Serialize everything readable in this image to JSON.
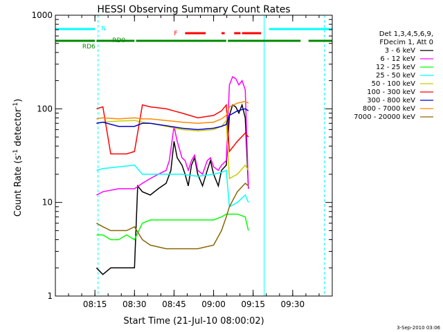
{
  "chart_data": {
    "type": "line",
    "title": "HESSI Observing Summary Count Rates",
    "xlabel": "Start Time (21-Jul-10 08:00:02)",
    "ylabel": "Count Rate (s⁻¹ detector⁻¹)",
    "ylabel_parts": {
      "main": "Count Rate (s",
      "sup1": "-1",
      "mid": " detector",
      "sup2": "-1",
      "end": ")"
    },
    "y_scale": "log",
    "ylim": [
      1,
      1000
    ],
    "y_ticks": [
      1,
      10,
      100,
      1000
    ],
    "y_tick_labels": [
      "1",
      "10",
      "100",
      "1000"
    ],
    "xlim": [
      8.0,
      9.75
    ],
    "x_ticks": [
      8.25,
      8.5,
      8.75,
      9.0,
      9.25,
      9.5
    ],
    "x_tick_labels": [
      "08:15",
      "08:30",
      "08:45",
      "09:00",
      "09:15",
      "09:30"
    ],
    "legend_header": [
      "Det 1,3,4,5,6,9,",
      "FDecim 1, Att 0"
    ],
    "legend_position": "right",
    "series": [
      {
        "name": "3 - 6 keV",
        "color": "#000000",
        "x": [
          8.26,
          8.3,
          8.35,
          8.4,
          8.45,
          8.5,
          8.52,
          8.55,
          8.6,
          8.65,
          8.7,
          8.73,
          8.75,
          8.77,
          8.8,
          8.82,
          8.84,
          8.86,
          8.88,
          8.9,
          8.93,
          8.96,
          8.98,
          9.0,
          9.03,
          9.05,
          9.08,
          9.1,
          9.12,
          9.14,
          9.16,
          9.18,
          9.2,
          9.22
        ],
        "y": [
          2,
          1.7,
          2,
          2,
          2,
          2,
          15,
          13,
          12,
          14,
          16,
          22,
          45,
          30,
          25,
          20,
          15,
          25,
          30,
          20,
          15,
          22,
          28,
          20,
          15,
          22,
          25,
          85,
          110,
          105,
          90,
          110,
          80,
          14
        ]
      },
      {
        "name": "6 - 12 keV",
        "color": "#ff00ff",
        "x": [
          8.26,
          8.3,
          8.4,
          8.5,
          8.55,
          8.6,
          8.65,
          8.7,
          8.72,
          8.75,
          8.77,
          8.8,
          8.82,
          8.84,
          8.86,
          8.88,
          8.9,
          8.93,
          8.96,
          8.98,
          9.0,
          9.03,
          9.05,
          9.08,
          9.1,
          9.12,
          9.14,
          9.16,
          9.18,
          9.2,
          9.22
        ],
        "y": [
          12,
          13,
          14,
          14,
          16,
          18,
          20,
          22,
          28,
          65,
          45,
          30,
          28,
          22,
          28,
          32,
          22,
          20,
          28,
          30,
          24,
          22,
          25,
          28,
          180,
          220,
          210,
          180,
          200,
          160,
          14
        ]
      },
      {
        "name": "12 - 25 keV",
        "color": "#00ff00",
        "x": [
          8.26,
          8.3,
          8.35,
          8.4,
          8.45,
          8.5,
          8.55,
          8.6,
          8.7,
          8.8,
          8.9,
          9.0,
          9.05,
          9.08,
          9.1,
          9.15,
          9.2,
          9.22
        ],
        "y": [
          4.5,
          4.5,
          4,
          4,
          4.5,
          4,
          6,
          6.5,
          6.5,
          6.5,
          6.5,
          6.5,
          7,
          7.5,
          7.5,
          7.5,
          7,
          5
        ]
      },
      {
        "name": "25 - 50 keV",
        "color": "#00ffff",
        "x": [
          8.26,
          8.3,
          8.4,
          8.5,
          8.55,
          8.6,
          8.7,
          8.8,
          8.9,
          9.0,
          9.05,
          9.08,
          9.1,
          9.15,
          9.2,
          9.22
        ],
        "y": [
          22,
          23,
          24,
          25,
          20,
          20,
          20,
          20,
          19,
          20,
          21,
          22,
          9,
          10,
          12,
          10
        ]
      },
      {
        "name": "50 - 100 keV",
        "color": "#cccc00",
        "x": [
          8.26,
          8.3,
          8.4,
          8.5,
          8.55,
          8.6,
          8.7,
          8.8,
          8.9,
          9.0,
          9.05,
          9.08,
          9.1,
          9.15,
          9.2,
          9.22
        ],
        "y": [
          70,
          72,
          74,
          75,
          72,
          70,
          65,
          60,
          58,
          60,
          65,
          75,
          18,
          20,
          25,
          22
        ]
      },
      {
        "name": "100 - 300 keV",
        "color": "#ff0000",
        "x": [
          8.26,
          8.3,
          8.35,
          8.4,
          8.45,
          8.5,
          8.55,
          8.6,
          8.7,
          8.8,
          8.9,
          9.0,
          9.05,
          9.08,
          9.1,
          9.15,
          9.2,
          9.22
        ],
        "y": [
          100,
          105,
          33,
          33,
          33,
          35,
          110,
          105,
          100,
          90,
          80,
          85,
          95,
          110,
          35,
          45,
          55,
          50
        ]
      },
      {
        "name": "300 - 800 keV",
        "color": "#0000cc",
        "x": [
          8.26,
          8.3,
          8.4,
          8.5,
          8.55,
          8.6,
          8.7,
          8.8,
          8.9,
          9.0,
          9.05,
          9.08,
          9.1,
          9.15,
          9.2,
          9.22
        ],
        "y": [
          70,
          72,
          65,
          65,
          70,
          70,
          66,
          62,
          60,
          62,
          65,
          68,
          85,
          95,
          100,
          95
        ]
      },
      {
        "name": "800 - 7000 keV",
        "color": "#ff8800",
        "x": [
          8.26,
          8.3,
          8.4,
          8.5,
          8.55,
          8.6,
          8.7,
          8.8,
          8.9,
          9.0,
          9.05,
          9.08,
          9.1,
          9.15,
          9.2,
          9.22
        ],
        "y": [
          78,
          80,
          78,
          80,
          78,
          78,
          75,
          72,
          70,
          72,
          78,
          85,
          105,
          115,
          120,
          115
        ]
      },
      {
        "name": "7000 - 20000 keV",
        "color": "#886600",
        "x": [
          8.26,
          8.3,
          8.35,
          8.4,
          8.45,
          8.5,
          8.55,
          8.6,
          8.7,
          8.8,
          8.9,
          9.0,
          9.05,
          9.08,
          9.1,
          9.15,
          9.2,
          9.22
        ],
        "y": [
          6,
          5.5,
          5,
          5,
          5,
          5.5,
          4,
          3.5,
          3.2,
          3.2,
          3.2,
          3.5,
          5,
          7,
          9,
          13,
          16,
          15
        ]
      }
    ],
    "flag_bars": [
      {
        "name": "N",
        "color": "#00ffff",
        "segments": [
          [
            8.0,
            8.25
          ],
          [
            9.35,
            9.75
          ]
        ]
      },
      {
        "name": "F",
        "color": "#ff0000",
        "segments": [
          [
            8.82,
            8.95
          ],
          [
            9.05,
            9.07
          ],
          [
            9.13,
            9.17
          ],
          [
            9.18,
            9.3
          ]
        ]
      },
      {
        "name": "RD0",
        "color": "#008800",
        "segments": [
          [
            8.51,
            9.08
          ]
        ]
      },
      {
        "name": "RD6",
        "color": "#008800",
        "segments": [
          [
            8.0,
            8.25
          ],
          [
            8.26,
            8.5
          ],
          [
            9.09,
            9.55
          ],
          [
            9.6,
            9.75
          ]
        ]
      }
    ],
    "vlines": [
      {
        "x": 8.0,
        "color": "#00ffff",
        "style": "solid"
      },
      {
        "x": 8.27,
        "color": "#00ffff",
        "style": "dashed"
      },
      {
        "x": 9.32,
        "color": "#00ffff",
        "style": "solid"
      },
      {
        "x": 9.7,
        "color": "#00ffff",
        "style": "dashed"
      }
    ]
  },
  "footer_date": "3-Sep-2010 03:06"
}
